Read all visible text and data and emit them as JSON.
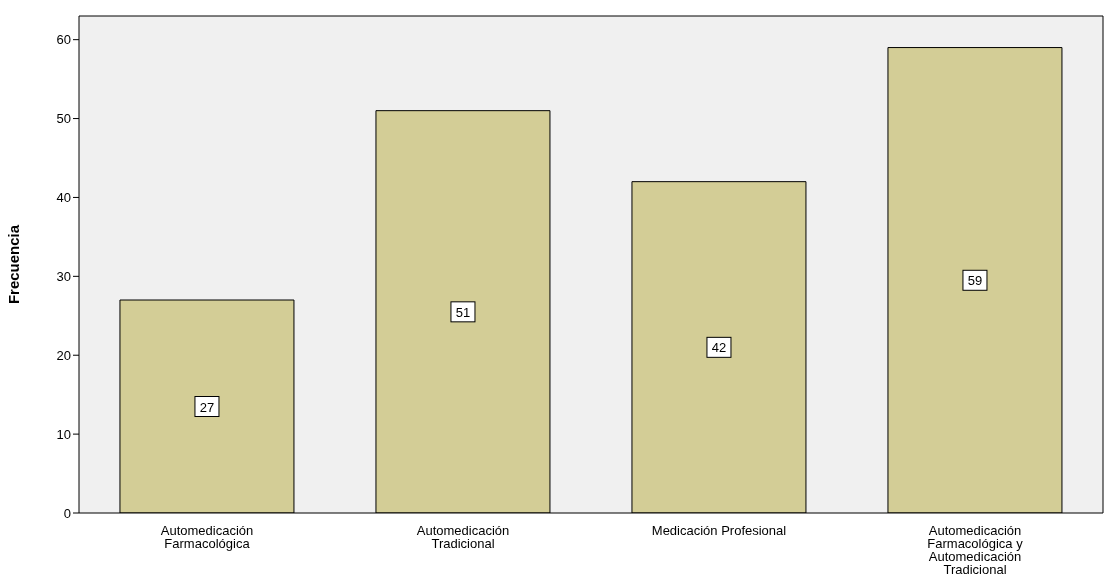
{
  "chart_data": {
    "type": "bar",
    "ylabel": "Frecuencia",
    "categories": [
      "Automedicación Farmacológica",
      "Automedicación Tradicional",
      "Medicación Profesional",
      "Automedicación Farmacológica y Automedicación Tradicional"
    ],
    "values": [
      27,
      51,
      42,
      59
    ],
    "color": "#d3cd96",
    "ylim": [
      0,
      63
    ],
    "yticks": [
      0,
      10,
      20,
      30,
      40,
      50,
      60
    ],
    "grid": false,
    "data_labels": true
  }
}
